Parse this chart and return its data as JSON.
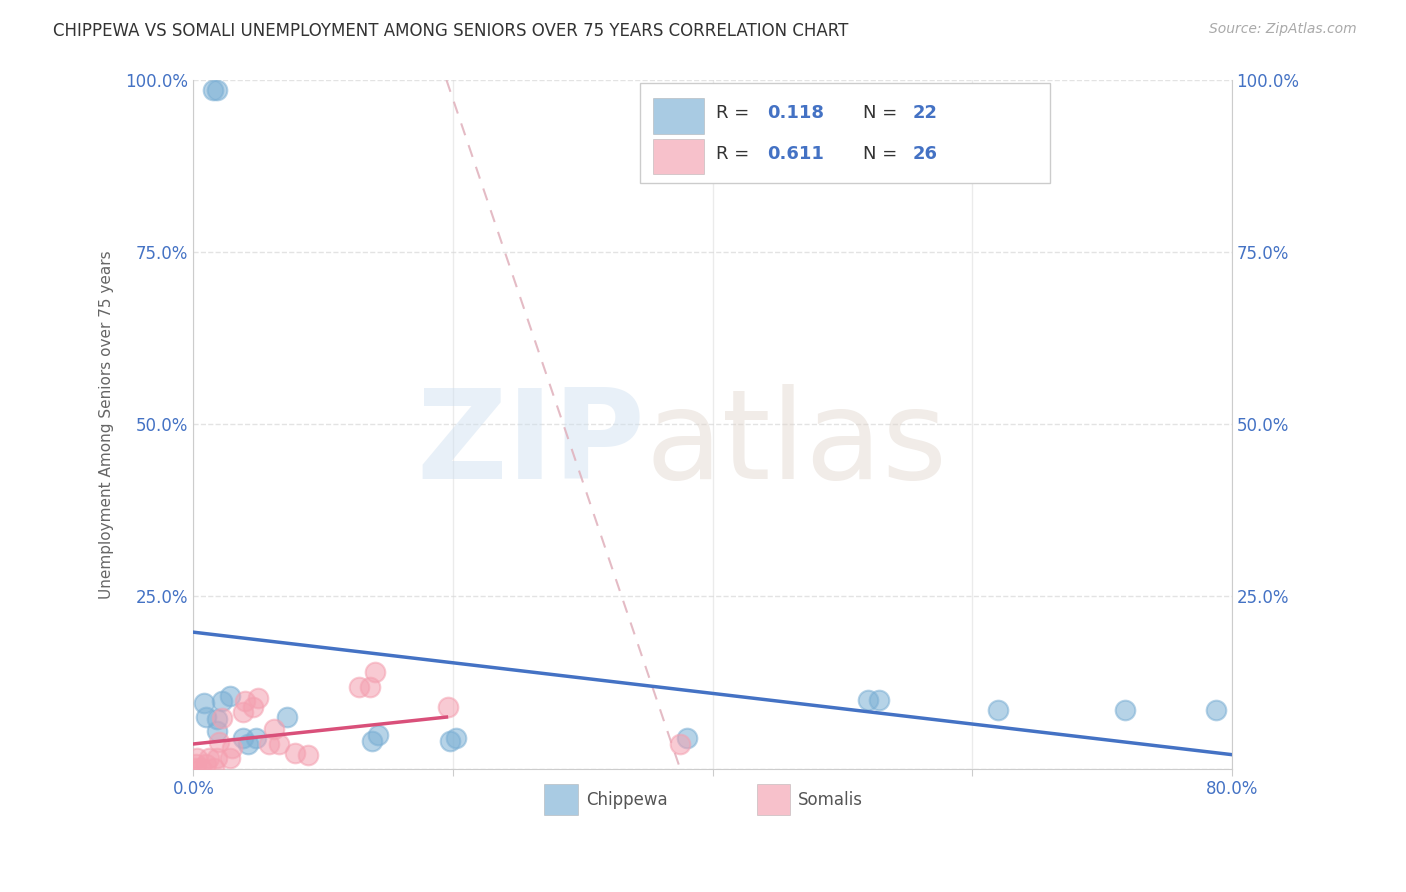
{
  "title": "CHIPPEWA VS SOMALI UNEMPLOYMENT AMONG SENIORS OVER 75 YEARS CORRELATION CHART",
  "source": "Source: ZipAtlas.com",
  "ylabel": "Unemployment Among Seniors over 75 years",
  "xlim": [
    0.0,
    0.8
  ],
  "ylim": [
    0.0,
    1.0
  ],
  "xtick_positions": [
    0.0,
    0.2,
    0.4,
    0.6,
    0.8
  ],
  "xticklabels": [
    "0.0%",
    "",
    "",
    "",
    "80.0%"
  ],
  "ytick_positions": [
    0.0,
    0.25,
    0.5,
    0.75,
    1.0
  ],
  "yticklabels": [
    "",
    "25.0%",
    "50.0%",
    "75.0%",
    "100.0%"
  ],
  "chippewa_color": "#7bafd4",
  "somali_color": "#f4a0b0",
  "chippewa_line_color": "#4472c4",
  "somali_line_color": "#d9507a",
  "diagonal_color": "#e0b0bb",
  "legend_R_color": "#4472c4",
  "legend_N_color": "#4472c4",
  "R_chippewa": 0.118,
  "N_chippewa": 22,
  "R_somali": 0.611,
  "N_somali": 26,
  "axis_tick_color": "#4472c4",
  "background_color": "#ffffff",
  "grid_color": "#d8d8d8",
  "title_color": "#333333",
  "chippewa_x": [
    0.015,
    0.018,
    0.008,
    0.01,
    0.018,
    0.022,
    0.028,
    0.018,
    0.038,
    0.042,
    0.048,
    0.072,
    0.138,
    0.142,
    0.198,
    0.202,
    0.38,
    0.52,
    0.528,
    0.62,
    0.718,
    0.788
  ],
  "chippewa_y": [
    0.985,
    0.985,
    0.095,
    0.075,
    0.072,
    0.098,
    0.105,
    0.055,
    0.045,
    0.035,
    0.045,
    0.075,
    0.04,
    0.048,
    0.04,
    0.044,
    0.044,
    0.1,
    0.1,
    0.085,
    0.085,
    0.085
  ],
  "somali_x": [
    0.001,
    0.002,
    0.003,
    0.006,
    0.01,
    0.012,
    0.016,
    0.018,
    0.02,
    0.022,
    0.028,
    0.03,
    0.038,
    0.04,
    0.046,
    0.05,
    0.058,
    0.062,
    0.066,
    0.078,
    0.088,
    0.128,
    0.136,
    0.14,
    0.196,
    0.375
  ],
  "somali_y": [
    0.001,
    0.006,
    0.015,
    0.001,
    0.007,
    0.015,
    0.001,
    0.015,
    0.038,
    0.073,
    0.015,
    0.03,
    0.082,
    0.098,
    0.089,
    0.103,
    0.035,
    0.058,
    0.035,
    0.023,
    0.02,
    0.119,
    0.119,
    0.14,
    0.089,
    0.035
  ],
  "somali_trendline_x": [
    0.0,
    0.195
  ],
  "chippewa_trendline_x": [
    0.0,
    0.8
  ]
}
